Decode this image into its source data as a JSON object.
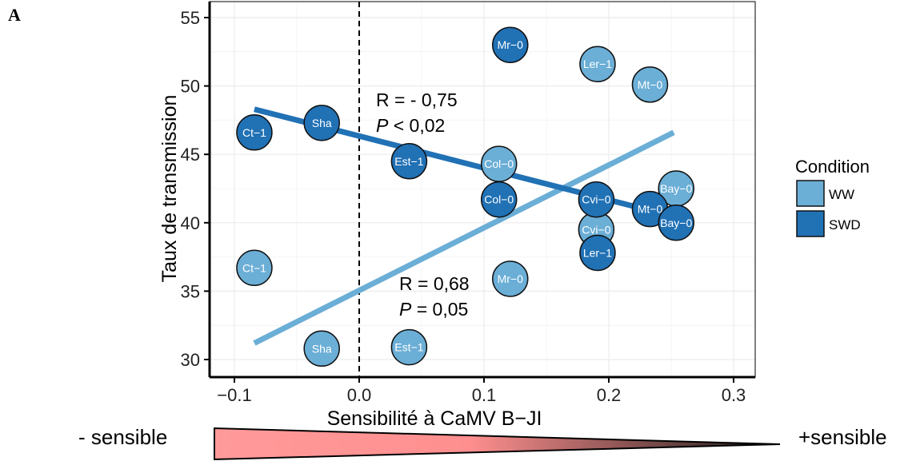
{
  "panel_label": "A",
  "colors": {
    "WW": "#6baed6",
    "SWD": "#2171b5",
    "grid": "#ebebeb",
    "axis": "#000000"
  },
  "chart_data": {
    "type": "scatter",
    "xlabel": "Sensibilité à CaMV B−JI",
    "ylabel": "Taux de transmission",
    "xlim": [
      -0.12,
      0.32
    ],
    "ylim": [
      29,
      56
    ],
    "x_ticks": [
      "−0.1",
      "0.0",
      "0.1",
      "0.2",
      "0.3"
    ],
    "x_tick_values": [
      -0.1,
      0.0,
      0.1,
      0.2,
      0.3
    ],
    "y_ticks": [
      "30",
      "35",
      "40",
      "45",
      "50",
      "55"
    ],
    "y_tick_values": [
      30,
      35,
      40,
      45,
      50,
      55
    ],
    "grid": true,
    "vline_x": 0.0,
    "legend": {
      "title": "Condition",
      "placement": "right",
      "entries": [
        {
          "label": "WW",
          "series": "WW"
        },
        {
          "label": "SWD",
          "series": "SWD"
        }
      ]
    },
    "series": [
      {
        "name": "WW",
        "points": [
          {
            "label": "Ct−1",
            "x": -0.084,
            "y": 36.7
          },
          {
            "label": "Sha",
            "x": -0.03,
            "y": 30.8
          },
          {
            "label": "Est−1",
            "x": 0.04,
            "y": 30.9
          },
          {
            "label": "Col−0",
            "x": 0.112,
            "y": 44.3
          },
          {
            "label": "Mr−0",
            "x": 0.121,
            "y": 35.9
          },
          {
            "label": "Cvi−0",
            "x": 0.19,
            "y": 39.5
          },
          {
            "label": "Ler−1",
            "x": 0.191,
            "y": 51.6
          },
          {
            "label": "Mt−0",
            "x": 0.233,
            "y": 50.1
          },
          {
            "label": "Bay−0",
            "x": 0.254,
            "y": 42.5
          }
        ],
        "fit_line": {
          "x": [
            -0.084,
            0.252
          ],
          "y": [
            31.2,
            46.6
          ]
        },
        "annotation": {
          "r": "R = 0,68",
          "p_label": "P",
          "p_rest": " = 0,05"
        }
      },
      {
        "name": "SWD",
        "points": [
          {
            "label": "Ct−1",
            "x": -0.084,
            "y": 46.6
          },
          {
            "label": "Sha",
            "x": -0.03,
            "y": 47.3
          },
          {
            "label": "Est−1",
            "x": 0.04,
            "y": 44.5
          },
          {
            "label": "Col−0",
            "x": 0.112,
            "y": 41.7
          },
          {
            "label": "Mr−0",
            "x": 0.121,
            "y": 53.0
          },
          {
            "label": "Cvi−0",
            "x": 0.19,
            "y": 41.7
          },
          {
            "label": "Ler−1",
            "x": 0.191,
            "y": 37.8
          },
          {
            "label": "Mt−0",
            "x": 0.233,
            "y": 41.0
          },
          {
            "label": "Bay−0",
            "x": 0.254,
            "y": 40.0
          }
        ],
        "fit_line": {
          "x": [
            -0.084,
            0.233
          ],
          "y": [
            48.3,
            40.9
          ]
        },
        "annotation": {
          "r": "R = - 0,75",
          "p_label": "P",
          "p_rest": " < 0,02"
        }
      }
    ]
  },
  "scale_bar": {
    "left_label": "- sensible",
    "right_label": "+sensible"
  }
}
